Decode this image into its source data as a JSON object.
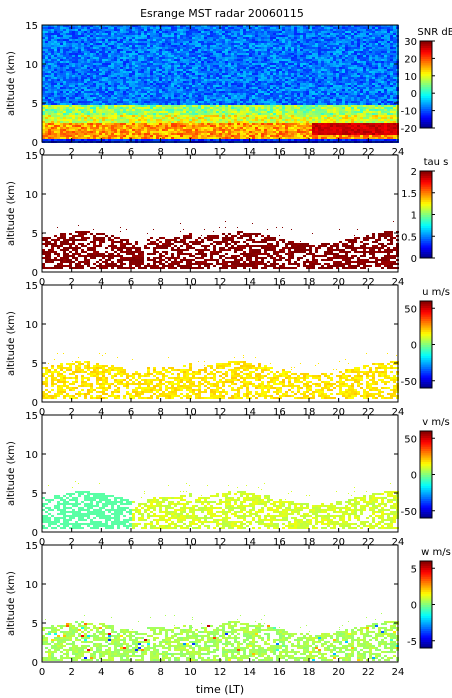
{
  "chart_data": {
    "title": "Esrange MST radar 20060115",
    "xlabel": "time (LT)",
    "x_ticks": [
      "0",
      "2",
      "4",
      "6",
      "8",
      "10",
      "12",
      "14",
      "16",
      "18",
      "20",
      "22",
      "24"
    ],
    "xlim": [
      0,
      24
    ],
    "panels": [
      {
        "type": "heatmap",
        "ylabel": "altitude (km)",
        "y_ticks": [
          "0",
          "5",
          "10",
          "15"
        ],
        "ylim": [
          0,
          15
        ],
        "colorbar": {
          "label": "SNR dB",
          "ticks": [
            "-20",
            "-10",
            "0",
            "10",
            "20",
            "30"
          ],
          "range": [
            -20,
            30
          ]
        },
        "variable": "snr",
        "description_layers": [
          {
            "x_range": [
              0,
              24
            ],
            "alt_range": [
              0,
              15
            ],
            "level": -8
          },
          {
            "x_range": [
              0,
              24
            ],
            "alt_range": [
              0.4,
              2.5
            ],
            "level": 22
          },
          {
            "x_range": [
              0,
              24
            ],
            "alt_range": [
              2.5,
              5
            ],
            "level": 10
          },
          {
            "x_range": [
              18,
              24
            ],
            "alt_range": [
              1,
              2.5
            ],
            "level": 28
          }
        ]
      },
      {
        "type": "heatmap",
        "ylabel": "altitude (km)",
        "y_ticks": [
          "0",
          "5",
          "10",
          "15"
        ],
        "ylim": [
          0,
          15
        ],
        "colorbar": {
          "label": "tau s",
          "ticks": [
            "0",
            "0.5",
            "1",
            "1.5",
            "2"
          ],
          "range": [
            0,
            2
          ]
        },
        "variable": "tau",
        "dominant_value": 2,
        "occupied_alt_range": [
          0.5,
          5.5
        ]
      },
      {
        "type": "heatmap",
        "ylabel": "altitude (km)",
        "y_ticks": [
          "0",
          "5",
          "10",
          "15"
        ],
        "ylim": [
          0,
          15
        ],
        "colorbar": {
          "label": "u m/s",
          "ticks": [
            "-50",
            "0",
            "50"
          ],
          "range": [
            -60,
            60
          ]
        },
        "variable": "u",
        "dominant_value": 18,
        "occupied_alt_range": [
          0.5,
          5.5
        ]
      },
      {
        "type": "heatmap",
        "ylabel": "altitude (km)",
        "y_ticks": [
          "0",
          "5",
          "10",
          "15"
        ],
        "ylim": [
          0,
          15
        ],
        "colorbar": {
          "label": "v m/s",
          "ticks": [
            "-50",
            "0",
            "50"
          ],
          "range": [
            -60,
            60
          ]
        },
        "variable": "v",
        "dominant_value": 10,
        "occupied_alt_range": [
          0.5,
          5.5
        ]
      },
      {
        "type": "heatmap",
        "ylabel": "altitude (km)",
        "y_ticks": [
          "0",
          "5",
          "10",
          "15"
        ],
        "ylim": [
          0,
          15
        ],
        "colorbar": {
          "label": "w m/s",
          "ticks": [
            "-5",
            "0",
            "5"
          ],
          "range": [
            -6,
            6
          ]
        },
        "variable": "w",
        "dominant_value": 0.5,
        "occupied_alt_range": [
          0.3,
          5.5
        ]
      }
    ]
  }
}
